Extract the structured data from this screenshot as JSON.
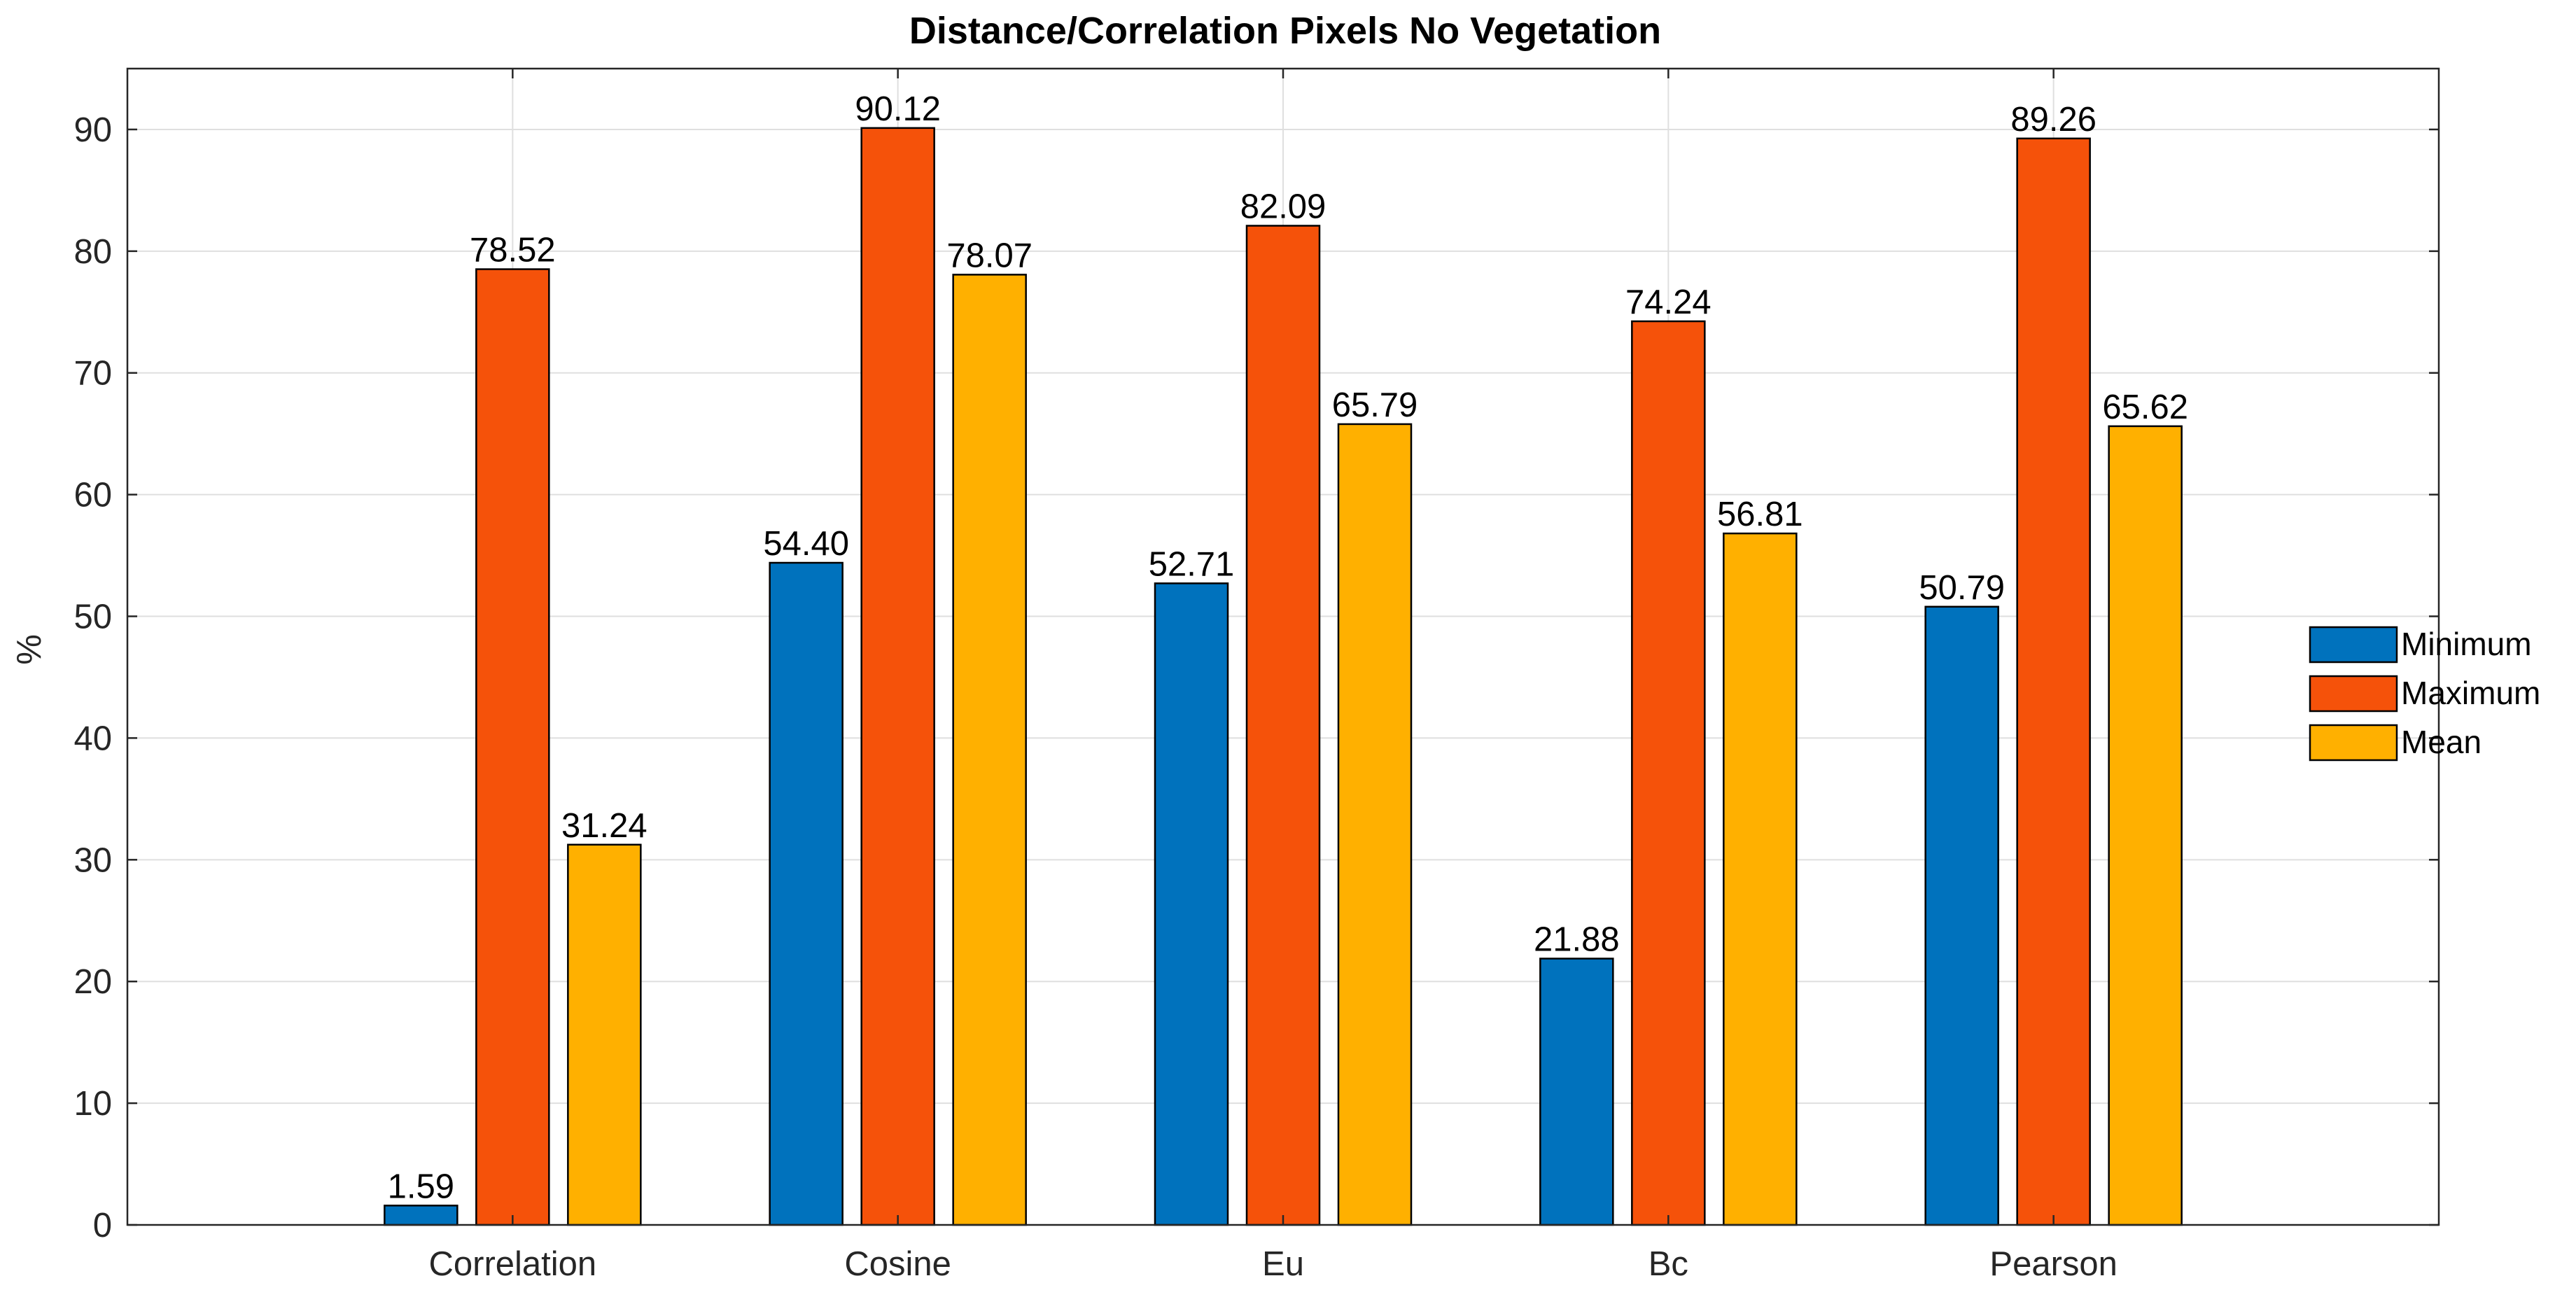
{
  "chart_data": {
    "type": "bar",
    "title": "Distance/Correlation Pixels No Vegetation",
    "xlabel": "",
    "ylabel": "%",
    "ylim": [
      0,
      95
    ],
    "yticks": [
      0,
      10,
      20,
      30,
      40,
      50,
      60,
      70,
      80,
      90
    ],
    "grid": true,
    "legend_position": "right",
    "categories": [
      "Correlation",
      "Cosine",
      "Eu",
      "Bc",
      "Pearson"
    ],
    "series": [
      {
        "name": "Minimum",
        "color": "#0072BD",
        "values": [
          1.59,
          54.4,
          52.71,
          21.88,
          50.79
        ],
        "labels": [
          "1.59",
          "54.40",
          "52.71",
          "21.88",
          "50.79"
        ]
      },
      {
        "name": "Maximum",
        "color": "#F5520A",
        "values": [
          78.52,
          90.12,
          82.09,
          74.24,
          89.26
        ],
        "labels": [
          "78.52",
          "90.12",
          "82.09",
          "74.24",
          "89.26"
        ]
      },
      {
        "name": "Mean",
        "color": "#FFB000",
        "values": [
          31.24,
          78.07,
          65.79,
          56.81,
          65.62
        ],
        "labels": [
          "31.24",
          "78.07",
          "65.79",
          "56.81",
          "65.62"
        ]
      }
    ]
  }
}
